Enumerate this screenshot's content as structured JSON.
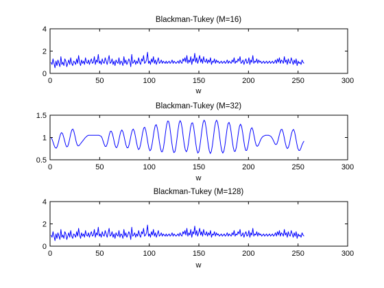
{
  "chart_data": [
    {
      "type": "line",
      "title": "Blackman-Tukey (M=16)",
      "xlabel": "w",
      "ylabel": "",
      "xlim": [
        0,
        300
      ],
      "ylim": [
        0,
        4
      ],
      "xticks": [
        0,
        50,
        100,
        150,
        200,
        250,
        300
      ],
      "yticks": [
        0,
        2,
        4
      ],
      "x_range": [
        1,
        256
      ],
      "color": "#0000ff",
      "series": [
        {
          "values": [
            1.0,
            0.8,
            1.3,
            0.9,
            0.5,
            1.1,
            0.7,
            1.2,
            0.9,
            0.6,
            1.5,
            0.8,
            1.0,
            0.7,
            1.3,
            1.1,
            0.6,
            0.9,
            1.2,
            0.8,
            1.4,
            0.9,
            0.7,
            1.1,
            1.0,
            0.8,
            1.3,
            0.9,
            1.6,
            1.0,
            0.7,
            1.2,
            0.9,
            1.1,
            0.8,
            1.4,
            1.0,
            0.9,
            1.2,
            0.8,
            1.1,
            1.3,
            0.9,
            1.0,
            1.5,
            0.8,
            1.2,
            1.0,
            1.7,
            0.9,
            1.1,
            0.8,
            1.3,
            1.0,
            0.9,
            1.4,
            1.1,
            0.8,
            1.2,
            1.6,
            0.9,
            1.0,
            1.3,
            0.8,
            1.1,
            0.7,
            1.2,
            1.0,
            0.9,
            1.4,
            0.8,
            1.1,
            1.0,
            0.7,
            1.5,
            0.9,
            1.2,
            0.8,
            1.0,
            1.3,
            1.1,
            0.6,
            1.7,
            0.9,
            1.0,
            1.2,
            0.8,
            1.1,
            0.9,
            1.4,
            1.0,
            0.8,
            1.3,
            1.1,
            1.6,
            0.9,
            1.0,
            1.2,
            1.9,
            0.9,
            1.1,
            0.8,
            1.3,
            1.0,
            1.5,
            0.9,
            1.2,
            0.8,
            1.1,
            1.4,
            0.9,
            1.0,
            1.2,
            0.9,
            1.1,
            1.0,
            0.9,
            1.1,
            0.9,
            1.0,
            1.1,
            0.9,
            1.0,
            1.2,
            0.9,
            1.1,
            1.0,
            0.9,
            1.0,
            1.1,
            0.9,
            1.2,
            1.0,
            0.9,
            1.3,
            1.1,
            1.4,
            1.0,
            1.6,
            0.9,
            1.2,
            1.0,
            1.5,
            0.8,
            1.3,
            1.1,
            1.8,
            1.0,
            1.4,
            0.9,
            1.2,
            1.6,
            1.0,
            1.3,
            0.9,
            1.5,
            1.1,
            1.0,
            1.3,
            0.9,
            1.2,
            1.0,
            1.4,
            0.8,
            1.1,
            1.0,
            1.3,
            0.9,
            1.2,
            1.0,
            1.1,
            0.9,
            1.0,
            1.1,
            0.9,
            1.0,
            1.1,
            0.9,
            1.0,
            1.2,
            0.9,
            1.1,
            1.0,
            0.9,
            1.2,
            1.0,
            1.4,
            0.9,
            1.1,
            1.0,
            1.3,
            1.1,
            1.5,
            0.9,
            1.0,
            1.2,
            0.8,
            1.1,
            1.3,
            0.9,
            1.0,
            1.4,
            0.8,
            1.2,
            1.0,
            1.6,
            0.9,
            1.1,
            1.0,
            1.3,
            0.9,
            1.2,
            1.0,
            1.1,
            0.9,
            1.0,
            1.1,
            0.9,
            1.0,
            1.1,
            0.9,
            1.0,
            1.1,
            0.9,
            1.0,
            1.1,
            0.9,
            1.0,
            1.2,
            0.9,
            1.3,
            1.0,
            1.4,
            0.9,
            1.2,
            1.1,
            0.9,
            1.5,
            1.0,
            1.2,
            0.8,
            1.3,
            1.0,
            0.9,
            1.4,
            1.1,
            0.8,
            1.2,
            0.9,
            1.3,
            0.7,
            1.1,
            0.9,
            1.0,
            0.8,
            1.2,
            1.0,
            0.9
          ]
        }
      ]
    },
    {
      "type": "line",
      "title": "Blackman-Tukey (M=32)",
      "xlabel": "w",
      "ylabel": "",
      "xlim": [
        0,
        300
      ],
      "ylim": [
        0.5,
        1.5
      ],
      "xticks": [
        0,
        50,
        100,
        150,
        200,
        250,
        300
      ],
      "yticks": [
        0.5,
        1,
        1.5
      ],
      "x_range": [
        1,
        256
      ],
      "color": "#0000ff",
      "series": [
        {
          "values": [
            1.0,
            0.96,
            0.89,
            0.82,
            0.77,
            0.76,
            0.8,
            0.88,
            0.98,
            1.07,
            1.11,
            1.09,
            1.02,
            0.93,
            0.84,
            0.79,
            0.8,
            0.87,
            0.98,
            1.09,
            1.17,
            1.19,
            1.13,
            1.03,
            0.92,
            0.84,
            0.81,
            0.82,
            0.85,
            0.88,
            0.91,
            0.94,
            0.97,
            1.0,
            1.02,
            1.04,
            1.05,
            1.05,
            1.05,
            1.05,
            1.05,
            1.05,
            1.05,
            1.05,
            1.05,
            1.05,
            1.05,
            1.04,
            1.03,
            0.99,
            0.92,
            0.85,
            0.8,
            0.8,
            0.86,
            0.96,
            1.07,
            1.14,
            1.14,
            1.08,
            0.98,
            0.87,
            0.79,
            0.77,
            0.82,
            0.92,
            1.04,
            1.13,
            1.17,
            1.13,
            1.04,
            0.93,
            0.83,
            0.77,
            0.77,
            0.84,
            0.95,
            1.07,
            1.16,
            1.19,
            1.14,
            1.03,
            0.9,
            0.79,
            0.73,
            0.75,
            0.84,
            0.97,
            1.11,
            1.21,
            1.23,
            1.16,
            1.03,
            0.88,
            0.76,
            0.7,
            0.73,
            0.84,
            0.99,
            1.15,
            1.26,
            1.29,
            1.22,
            1.08,
            0.91,
            0.77,
            0.68,
            0.68,
            0.77,
            0.93,
            1.12,
            1.28,
            1.37,
            1.36,
            1.25,
            1.07,
            0.88,
            0.73,
            0.66,
            0.68,
            0.8,
            0.98,
            1.17,
            1.32,
            1.38,
            1.33,
            1.2,
            1.01,
            0.84,
            0.72,
            0.68,
            0.73,
            0.87,
            1.05,
            1.22,
            1.32,
            1.33,
            1.23,
            1.06,
            0.87,
            0.72,
            0.65,
            0.68,
            0.81,
            0.99,
            1.18,
            1.33,
            1.39,
            1.35,
            1.21,
            1.02,
            0.84,
            0.7,
            0.64,
            0.69,
            0.82,
            1.01,
            1.2,
            1.34,
            1.39,
            1.34,
            1.2,
            1.01,
            0.83,
            0.7,
            0.65,
            0.69,
            0.82,
            1.0,
            1.18,
            1.31,
            1.34,
            1.27,
            1.12,
            0.94,
            0.78,
            0.69,
            0.69,
            0.78,
            0.94,
            1.11,
            1.25,
            1.3,
            1.25,
            1.12,
            0.95,
            0.8,
            0.71,
            0.71,
            0.79,
            0.93,
            1.08,
            1.19,
            1.22,
            1.16,
            1.04,
            0.92,
            0.83,
            0.8,
            0.82,
            0.87,
            0.93,
            0.98,
            1.01,
            1.03,
            1.04,
            1.05,
            1.05,
            1.05,
            1.05,
            1.04,
            1.03,
            1.0,
            0.96,
            0.91,
            0.86,
            0.84,
            0.86,
            0.93,
            1.03,
            1.12,
            1.18,
            1.18,
            1.11,
            1.0,
            0.88,
            0.79,
            0.75,
            0.78,
            0.86,
            0.98,
            1.09,
            1.16,
            1.18,
            1.12,
            1.0,
            0.87,
            0.76,
            0.71,
            0.71,
            0.76,
            0.83,
            0.88,
            0.92
          ]
        }
      ]
    },
    {
      "type": "line",
      "title": "Blackman-Tukey (M=128)",
      "xlabel": "w",
      "ylabel": "",
      "xlim": [
        0,
        300
      ],
      "ylim": [
        0,
        4
      ],
      "xticks": [
        0,
        50,
        100,
        150,
        200,
        250,
        300
      ],
      "yticks": [
        0,
        2,
        4
      ],
      "x_range": [
        1,
        256
      ],
      "color": "#0000ff",
      "series": [
        {
          "values": [
            1.0,
            0.8,
            1.3,
            0.9,
            0.5,
            1.1,
            0.7,
            1.2,
            0.9,
            0.6,
            1.5,
            0.8,
            1.0,
            0.7,
            1.3,
            1.1,
            0.6,
            0.9,
            1.2,
            0.8,
            1.4,
            0.9,
            0.7,
            1.1,
            1.0,
            0.8,
            1.3,
            0.9,
            1.6,
            1.0,
            0.7,
            1.2,
            0.9,
            1.1,
            0.8,
            1.4,
            1.0,
            0.9,
            1.2,
            0.8,
            1.1,
            1.3,
            0.9,
            1.0,
            1.5,
            0.8,
            1.2,
            1.0,
            1.7,
            0.9,
            1.1,
            0.8,
            1.3,
            1.0,
            0.9,
            1.4,
            1.1,
            0.8,
            1.2,
            1.6,
            0.9,
            1.0,
            1.3,
            0.8,
            1.1,
            0.7,
            1.2,
            1.0,
            0.9,
            1.4,
            0.8,
            1.1,
            1.0,
            0.7,
            1.5,
            0.9,
            1.2,
            0.8,
            1.0,
            1.3,
            1.1,
            0.6,
            1.7,
            0.9,
            1.0,
            1.2,
            0.8,
            1.1,
            0.9,
            1.4,
            1.0,
            0.8,
            1.3,
            1.1,
            1.6,
            0.9,
            1.0,
            1.2,
            1.9,
            0.9,
            1.1,
            0.8,
            1.3,
            1.0,
            1.5,
            0.9,
            1.2,
            0.8,
            1.1,
            1.4,
            0.9,
            1.0,
            1.2,
            0.9,
            1.1,
            1.0,
            0.9,
            1.1,
            0.9,
            1.0,
            1.1,
            0.9,
            1.0,
            1.2,
            0.9,
            1.1,
            1.0,
            0.9,
            1.0,
            1.1,
            0.9,
            1.2,
            1.0,
            0.9,
            1.3,
            1.1,
            1.4,
            1.0,
            1.6,
            0.9,
            1.2,
            1.0,
            1.5,
            0.8,
            1.3,
            1.1,
            1.8,
            1.0,
            1.4,
            0.9,
            1.2,
            1.6,
            1.0,
            1.3,
            0.9,
            1.5,
            1.1,
            1.0,
            1.3,
            0.9,
            1.2,
            1.0,
            1.4,
            0.8,
            1.1,
            1.0,
            1.3,
            0.9,
            1.2,
            1.0,
            1.1,
            0.9,
            1.0,
            1.1,
            0.9,
            1.0,
            1.1,
            0.9,
            1.0,
            1.2,
            0.9,
            1.1,
            1.0,
            0.9,
            1.2,
            1.0,
            1.4,
            0.9,
            1.1,
            1.0,
            1.3,
            1.1,
            1.5,
            0.9,
            1.0,
            1.2,
            0.8,
            1.1,
            1.3,
            0.9,
            1.0,
            1.4,
            0.8,
            1.2,
            1.0,
            1.6,
            0.9,
            1.1,
            1.0,
            1.3,
            0.9,
            1.2,
            1.0,
            1.1,
            0.9,
            1.0,
            1.1,
            0.9,
            1.0,
            1.1,
            0.9,
            1.0,
            1.1,
            0.9,
            1.0,
            1.1,
            0.9,
            1.0,
            1.2,
            0.9,
            1.3,
            1.0,
            1.4,
            0.9,
            1.2,
            1.1,
            0.9,
            1.5,
            1.0,
            1.2,
            0.8,
            1.3,
            1.0,
            0.9,
            1.4,
            1.1,
            0.8,
            1.2,
            0.9,
            1.3,
            0.7,
            1.1,
            0.9,
            1.0,
            0.8,
            1.2,
            1.0,
            0.9
          ]
        }
      ]
    }
  ]
}
